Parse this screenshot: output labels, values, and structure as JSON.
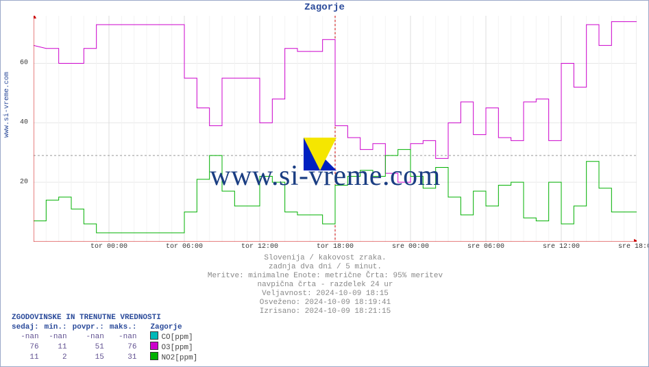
{
  "title": "Zagorje",
  "ylabel_link": "www.si-vreme.com",
  "watermark_text": "www.si-vreme.com",
  "subtitles": [
    "Slovenija / kakovost zraka.",
    "zadnja dva dni / 5 minut.",
    "Meritve: minimalne  Enote: metrične  Črta: 95% meritev",
    "navpična črta - razdelek 24 ur",
    "Veljavnost: 2024-10-09 18:15",
    "Osveženo: 2024-10-09 18:19:41",
    "Izrisano: 2024-10-09 18:21:15"
  ],
  "chart": {
    "type": "step-line",
    "background_color": "#ffffff",
    "grid_color": "#e6e6e6",
    "border_color": "#cc0000",
    "x_range_hours": 48,
    "x_start_label_hour_offset": -42,
    "xticks": [
      "tor 00:00",
      "tor 06:00",
      "tor 12:00",
      "tor 18:00",
      "sre 00:00",
      "sre 06:00",
      "sre 12:00",
      "sre 18:00"
    ],
    "xtick_hours": [
      6,
      12,
      18,
      24,
      30,
      36,
      42,
      48
    ],
    "ylim": [
      0,
      76
    ],
    "yticks": [
      20,
      40,
      60
    ],
    "divider_hour": 24,
    "divider_color": "#cc0000",
    "line95_value": 29,
    "line95_color": "#999999",
    "series": [
      {
        "name": "CO[ppm]",
        "color": "#00b8b8",
        "points": []
      },
      {
        "name": "O3[ppm]",
        "color": "#cc00cc",
        "points": [
          [
            0,
            66
          ],
          [
            1,
            65
          ],
          [
            2,
            65
          ],
          [
            2,
            60
          ],
          [
            4,
            60
          ],
          [
            4,
            65
          ],
          [
            5,
            65
          ],
          [
            5,
            73
          ],
          [
            6,
            73
          ],
          [
            9,
            73
          ],
          [
            9,
            73
          ],
          [
            12,
            73
          ],
          [
            12,
            55
          ],
          [
            13,
            55
          ],
          [
            13,
            45
          ],
          [
            14,
            45
          ],
          [
            14,
            39
          ],
          [
            15,
            39
          ],
          [
            15,
            55
          ],
          [
            16,
            55
          ],
          [
            16,
            55
          ],
          [
            18,
            55
          ],
          [
            18,
            40
          ],
          [
            19,
            40
          ],
          [
            19,
            48
          ],
          [
            20,
            48
          ],
          [
            20,
            65
          ],
          [
            21,
            65
          ],
          [
            21,
            64
          ],
          [
            23,
            64
          ],
          [
            23,
            68
          ],
          [
            24,
            68
          ],
          [
            24,
            39
          ],
          [
            25,
            39
          ],
          [
            25,
            35
          ],
          [
            26,
            35
          ],
          [
            26,
            31
          ],
          [
            27,
            31
          ],
          [
            27,
            33
          ],
          [
            28,
            33
          ],
          [
            28,
            23
          ],
          [
            29,
            23
          ],
          [
            29,
            20
          ],
          [
            30,
            20
          ],
          [
            30,
            33
          ],
          [
            31,
            33
          ],
          [
            31,
            34
          ],
          [
            32,
            34
          ],
          [
            32,
            28
          ],
          [
            33,
            28
          ],
          [
            33,
            40
          ],
          [
            34,
            40
          ],
          [
            34,
            47
          ],
          [
            35,
            47
          ],
          [
            35,
            36
          ],
          [
            36,
            36
          ],
          [
            36,
            45
          ],
          [
            37,
            45
          ],
          [
            37,
            35
          ],
          [
            38,
            35
          ],
          [
            38,
            34
          ],
          [
            39,
            34
          ],
          [
            39,
            47
          ],
          [
            40,
            47
          ],
          [
            40,
            48
          ],
          [
            41,
            48
          ],
          [
            41,
            34
          ],
          [
            42,
            34
          ],
          [
            42,
            60
          ],
          [
            43,
            60
          ],
          [
            43,
            52
          ],
          [
            44,
            52
          ],
          [
            44,
            73
          ],
          [
            45,
            73
          ],
          [
            45,
            66
          ],
          [
            46,
            66
          ],
          [
            46,
            74
          ],
          [
            48,
            74
          ]
        ]
      },
      {
        "name": "NO2[ppm]",
        "color": "#00b000",
        "points": [
          [
            0,
            7
          ],
          [
            1,
            7
          ],
          [
            1,
            14
          ],
          [
            2,
            14
          ],
          [
            2,
            15
          ],
          [
            3,
            15
          ],
          [
            3,
            11
          ],
          [
            4,
            11
          ],
          [
            4,
            6
          ],
          [
            5,
            6
          ],
          [
            5,
            3
          ],
          [
            6,
            3
          ],
          [
            9,
            3
          ],
          [
            9,
            3
          ],
          [
            12,
            3
          ],
          [
            12,
            10
          ],
          [
            13,
            10
          ],
          [
            13,
            21
          ],
          [
            14,
            21
          ],
          [
            14,
            29
          ],
          [
            15,
            29
          ],
          [
            15,
            17
          ],
          [
            16,
            17
          ],
          [
            16,
            12
          ],
          [
            18,
            12
          ],
          [
            18,
            22
          ],
          [
            19,
            22
          ],
          [
            19,
            20
          ],
          [
            20,
            20
          ],
          [
            20,
            10
          ],
          [
            21,
            10
          ],
          [
            21,
            9
          ],
          [
            23,
            9
          ],
          [
            23,
            6
          ],
          [
            24,
            6
          ],
          [
            24,
            19
          ],
          [
            25,
            19
          ],
          [
            25,
            22
          ],
          [
            26,
            22
          ],
          [
            26,
            24
          ],
          [
            27,
            24
          ],
          [
            27,
            22
          ],
          [
            28,
            22
          ],
          [
            28,
            29
          ],
          [
            29,
            29
          ],
          [
            29,
            31
          ],
          [
            30,
            31
          ],
          [
            30,
            22
          ],
          [
            31,
            22
          ],
          [
            31,
            18
          ],
          [
            32,
            18
          ],
          [
            32,
            25
          ],
          [
            33,
            25
          ],
          [
            33,
            15
          ],
          [
            34,
            15
          ],
          [
            34,
            9
          ],
          [
            35,
            9
          ],
          [
            35,
            17
          ],
          [
            36,
            17
          ],
          [
            36,
            12
          ],
          [
            37,
            12
          ],
          [
            37,
            19
          ],
          [
            38,
            19
          ],
          [
            38,
            20
          ],
          [
            39,
            20
          ],
          [
            39,
            8
          ],
          [
            40,
            8
          ],
          [
            40,
            7
          ],
          [
            41,
            7
          ],
          [
            41,
            20
          ],
          [
            42,
            20
          ],
          [
            42,
            6
          ],
          [
            43,
            6
          ],
          [
            43,
            12
          ],
          [
            44,
            12
          ],
          [
            44,
            27
          ],
          [
            45,
            27
          ],
          [
            45,
            18
          ],
          [
            46,
            18
          ],
          [
            46,
            10
          ],
          [
            48,
            10
          ]
        ]
      }
    ]
  },
  "table": {
    "title": "ZGODOVINSKE IN TRENUTNE VREDNOSTI",
    "headers": [
      "sedaj:",
      "min.:",
      "povpr.:",
      "maks.:"
    ],
    "location": "Zagorje",
    "rows": [
      {
        "color": "#00b8b8",
        "label": "CO[ppm]",
        "sedaj": "-nan",
        "min": "-nan",
        "povpr": "-nan",
        "maks": "-nan"
      },
      {
        "color": "#cc00cc",
        "label": "O3[ppm]",
        "sedaj": "76",
        "min": "11",
        "povpr": "51",
        "maks": "76"
      },
      {
        "color": "#00b000",
        "label": "NO2[ppm]",
        "sedaj": "11",
        "min": "2",
        "povpr": "15",
        "maks": "31"
      }
    ]
  },
  "styling": {
    "font_family_mono": "Courier New",
    "title_fontsize": 14,
    "body_fontsize": 11,
    "watermark_fontsize": 42,
    "accent_color": "#2a4a9a",
    "value_color": "#605090"
  }
}
